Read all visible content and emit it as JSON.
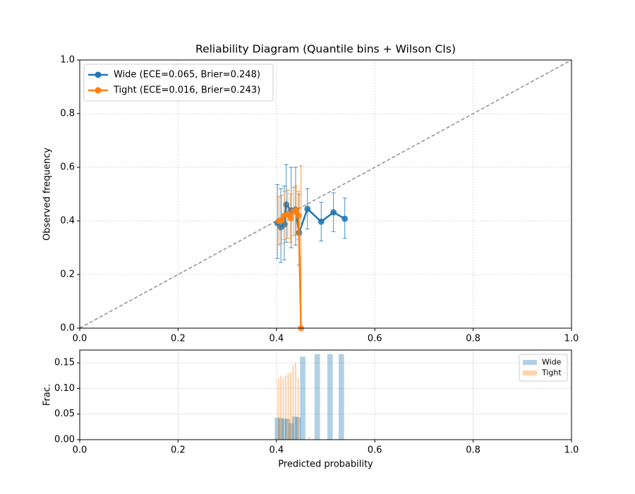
{
  "chart_data": [
    {
      "type": "line",
      "title": "Reliability Diagram (Quantile bins + Wilson CIs)",
      "ylabel": "Observed frequency",
      "xlim": [
        0,
        1
      ],
      "ylim": [
        0,
        1
      ],
      "xticks": [
        {
          "value": 0,
          "label": "0.0"
        },
        0.2,
        0.4,
        0.6,
        0.8,
        {
          "value": 1,
          "label": "1.0"
        }
      ],
      "yticks": [
        {
          "value": 0,
          "label": "0.0"
        },
        0.2,
        0.4,
        0.6,
        0.8,
        {
          "value": 1,
          "label": "1.0"
        }
      ],
      "grid": true,
      "diagonal": true,
      "legend": "upper left",
      "series": [
        {
          "name": "Wide (ECE=0.065, Brier=0.248)",
          "color": "#1f77b4",
          "x": [
            0.402,
            0.409,
            0.416,
            0.42,
            0.43,
            0.439,
            0.446,
            0.463,
            0.491,
            0.516,
            0.539
          ],
          "values": [
            0.392,
            0.376,
            0.387,
            0.461,
            0.439,
            0.442,
            0.355,
            0.445,
            0.397,
            0.432,
            0.408
          ],
          "ci_low": [
            0.26,
            0.245,
            0.255,
            0.32,
            0.3,
            0.31,
            0.235,
            0.37,
            0.325,
            0.36,
            0.335
          ],
          "ci_high": [
            0.535,
            0.52,
            0.53,
            0.61,
            0.6,
            0.6,
            0.5,
            0.52,
            0.47,
            0.505,
            0.485
          ]
        },
        {
          "name": "Tight (ECE=0.016, Brier=0.243)",
          "color": "#ff7f0e",
          "x": [
            0.405,
            0.41,
            0.416,
            0.423,
            0.429,
            0.435,
            0.44,
            0.445,
            0.45
          ],
          "values": [
            0.4,
            0.403,
            0.42,
            0.425,
            0.41,
            0.435,
            0.44,
            0.42,
            0.0
          ],
          "ci_low": [
            0.31,
            0.315,
            0.33,
            0.335,
            0.32,
            0.345,
            0.35,
            0.33,
            0.0
          ],
          "ci_high": [
            0.49,
            0.495,
            0.51,
            0.515,
            0.5,
            0.525,
            0.53,
            0.51,
            0.605
          ]
        }
      ]
    },
    {
      "type": "bar",
      "xlabel": "Predicted probability",
      "ylabel": "Frac.",
      "xlim": [
        0,
        1
      ],
      "ylim": [
        0,
        0.175
      ],
      "xticks": [
        {
          "value": 0,
          "label": "0.0"
        },
        0.2,
        0.4,
        0.6,
        0.8,
        {
          "value": 1,
          "label": "1.0"
        }
      ],
      "yticks": [
        {
          "value": 0,
          "label": "0.00"
        },
        0.05,
        {
          "value": 0.1,
          "label": "0.10"
        },
        0.15
      ],
      "grid": true,
      "legend": "upper right",
      "series": [
        {
          "name": "Wide",
          "color": "#1f77b4",
          "bar_width": 0.011,
          "x": [
            0.402,
            0.409,
            0.416,
            0.423,
            0.43,
            0.437,
            0.444,
            0.4535,
            0.483,
            0.509,
            0.532
          ],
          "values": [
            0.043,
            0.042,
            0.041,
            0.041,
            0.032,
            0.045,
            0.044,
            0.162,
            0.167,
            0.167,
            0.167
          ]
        },
        {
          "name": "Tight",
          "color": "#ff7f0e",
          "bar_width": 0.003,
          "x": [
            0.404,
            0.409,
            0.414,
            0.419,
            0.424,
            0.429,
            0.434,
            0.439,
            0.444,
            0.467
          ],
          "values": [
            0.12,
            0.125,
            0.122,
            0.125,
            0.13,
            0.132,
            0.145,
            0.15,
            0.12,
            0.005
          ]
        }
      ]
    }
  ]
}
